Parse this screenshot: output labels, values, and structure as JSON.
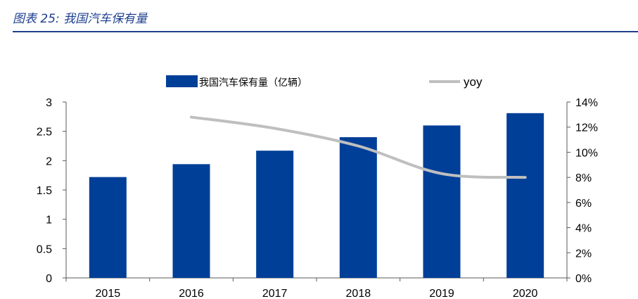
{
  "figure": {
    "title": "图表 25:  我国汽车保有量"
  },
  "chart_data": {
    "type": "bar",
    "categories": [
      "2015",
      "2016",
      "2017",
      "2018",
      "2019",
      "2020"
    ],
    "series": [
      {
        "name": "我国汽车保有量（亿辆）",
        "type": "bar",
        "axis": "left",
        "values": [
          1.72,
          1.94,
          2.17,
          2.4,
          2.6,
          2.81
        ]
      },
      {
        "name": "yoy",
        "type": "line",
        "axis": "right",
        "values": [
          null,
          12.8,
          11.9,
          10.5,
          8.3,
          8.0
        ]
      }
    ],
    "ylim": [
      0,
      3
    ],
    "y_ticks": [
      "0",
      "0.5",
      "1",
      "1.5",
      "2",
      "2.5",
      "3"
    ],
    "y_tick_values": [
      0,
      0.5,
      1,
      1.5,
      2,
      2.5,
      3
    ],
    "y2lim": [
      0,
      14
    ],
    "y2_ticks": [
      "0%",
      "2%",
      "4%",
      "6%",
      "8%",
      "10%",
      "12%",
      "14%"
    ],
    "y2_tick_values": [
      0,
      2,
      4,
      6,
      8,
      10,
      12,
      14
    ],
    "grid": false,
    "legend": "top-center",
    "colors": {
      "bar": "#003F98",
      "line": "#BFBFBF",
      "axis": "#595959",
      "title": "#1F3F8F"
    }
  }
}
